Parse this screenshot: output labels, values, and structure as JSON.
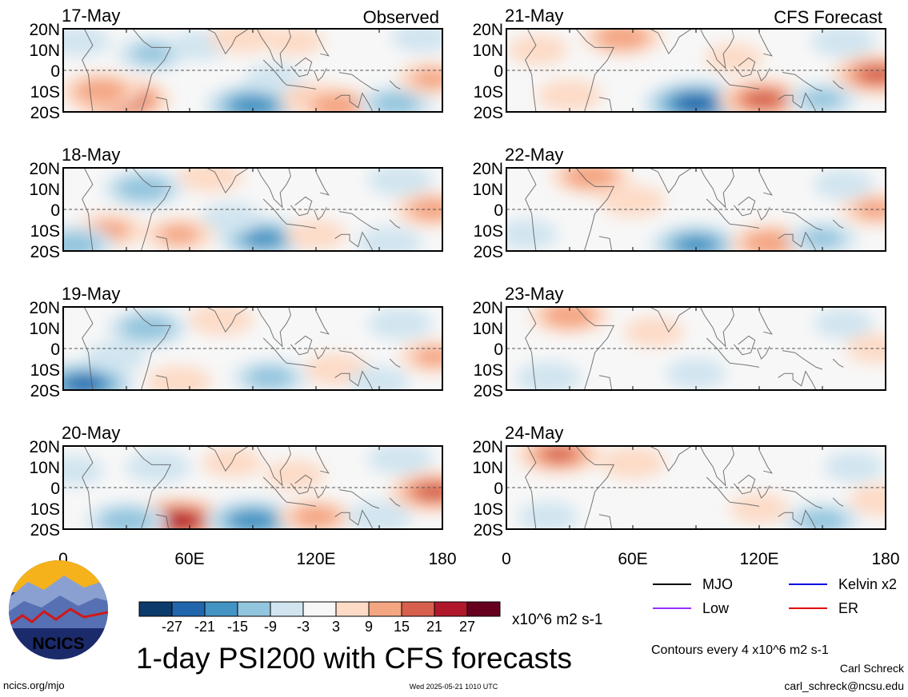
{
  "chart_data": {
    "type": "heatmap",
    "title": "1-day PSI200 with CFS forecasts",
    "colorbar": {
      "unit_label": "x10^6 m2 s-1",
      "tick_labels": [
        "-27",
        "-21",
        "-15",
        "-9",
        "-3",
        "3",
        "9",
        "15",
        "21",
        "27"
      ],
      "colors": [
        "#0b3a6b",
        "#2166ac",
        "#4393c3",
        "#92c5de",
        "#d1e5f0",
        "#f7f7f7",
        "#fddbc7",
        "#f4a582",
        "#d6604d",
        "#b2182b",
        "#67001f"
      ]
    },
    "x_ticks": [
      "0",
      "60E",
      "120E",
      "180"
    ],
    "y_ticks": [
      "20N",
      "10N",
      "0",
      "10S",
      "20S"
    ],
    "xlim": [
      0,
      180
    ],
    "ylim": [
      -20,
      20
    ],
    "panels_left_label": "Observed",
    "panels_right_label": "CFS Forecast",
    "panels_left": [
      {
        "date": "17-May",
        "blobs": [
          {
            "lon": 27,
            "lat": -14,
            "v": 22
          },
          {
            "lon": 18,
            "lat": -10,
            "v": 14
          },
          {
            "lon": 42,
            "lat": 8,
            "v": -10
          },
          {
            "lon": 65,
            "lat": 12,
            "v": -5
          },
          {
            "lon": 90,
            "lat": -17,
            "v": -20
          },
          {
            "lon": 100,
            "lat": -4,
            "v": -5
          },
          {
            "lon": 170,
            "lat": 16,
            "v": -6
          },
          {
            "lon": 120,
            "lat": -14,
            "v": 10
          },
          {
            "lon": 130,
            "lat": -17,
            "v": 14
          },
          {
            "lon": 158,
            "lat": -16,
            "v": -12
          },
          {
            "lon": 175,
            "lat": -4,
            "v": 10
          },
          {
            "lon": 85,
            "lat": 16,
            "v": 8
          },
          {
            "lon": 110,
            "lat": 14,
            "v": 5
          },
          {
            "lon": 8,
            "lat": 14,
            "v": -6
          }
        ]
      },
      {
        "date": "18-May",
        "blobs": [
          {
            "lon": 38,
            "lat": 10,
            "v": -14
          },
          {
            "lon": 22,
            "lat": -10,
            "v": 10
          },
          {
            "lon": 5,
            "lat": -17,
            "v": -14
          },
          {
            "lon": 70,
            "lat": 16,
            "v": 8
          },
          {
            "lon": 95,
            "lat": -14,
            "v": -18
          },
          {
            "lon": 80,
            "lat": -4,
            "v": -6
          },
          {
            "lon": 160,
            "lat": 14,
            "v": -8
          },
          {
            "lon": 175,
            "lat": 0,
            "v": 12
          },
          {
            "lon": 120,
            "lat": -12,
            "v": 6
          },
          {
            "lon": 155,
            "lat": -16,
            "v": -8
          },
          {
            "lon": 55,
            "lat": -12,
            "v": 10
          }
        ]
      },
      {
        "date": "19-May",
        "blobs": [
          {
            "lon": 40,
            "lat": 10,
            "v": -14
          },
          {
            "lon": 10,
            "lat": -17,
            "v": -22
          },
          {
            "lon": 25,
            "lat": -4,
            "v": -6
          },
          {
            "lon": 75,
            "lat": 14,
            "v": 8
          },
          {
            "lon": 98,
            "lat": -14,
            "v": -12
          },
          {
            "lon": 130,
            "lat": -10,
            "v": 8
          },
          {
            "lon": 160,
            "lat": 12,
            "v": -8
          },
          {
            "lon": 176,
            "lat": -4,
            "v": 10
          },
          {
            "lon": 55,
            "lat": -16,
            "v": 8
          },
          {
            "lon": 150,
            "lat": -16,
            "v": -6
          }
        ]
      },
      {
        "date": "20-May",
        "blobs": [
          {
            "lon": 55,
            "lat": -16,
            "v": 24
          },
          {
            "lon": 30,
            "lat": -16,
            "v": -14
          },
          {
            "lon": 45,
            "lat": 10,
            "v": -8
          },
          {
            "lon": 90,
            "lat": -16,
            "v": -20
          },
          {
            "lon": 120,
            "lat": -14,
            "v": 12
          },
          {
            "lon": 150,
            "lat": -14,
            "v": -8
          },
          {
            "lon": 176,
            "lat": -2,
            "v": 18
          },
          {
            "lon": 160,
            "lat": 14,
            "v": -8
          },
          {
            "lon": 80,
            "lat": 12,
            "v": 6
          },
          {
            "lon": 110,
            "lat": 6,
            "v": 6
          },
          {
            "lon": 5,
            "lat": 8,
            "v": -6
          }
        ]
      }
    ],
    "panels_right": [
      {
        "date": "21-May",
        "blobs": [
          {
            "lon": 55,
            "lat": 16,
            "v": 14
          },
          {
            "lon": 90,
            "lat": -16,
            "v": -24
          },
          {
            "lon": 122,
            "lat": -14,
            "v": 18
          },
          {
            "lon": 176,
            "lat": -2,
            "v": 18
          },
          {
            "lon": 30,
            "lat": -12,
            "v": 8
          },
          {
            "lon": 150,
            "lat": -14,
            "v": -10
          },
          {
            "lon": 160,
            "lat": 14,
            "v": -8
          },
          {
            "lon": 15,
            "lat": 10,
            "v": 6
          },
          {
            "lon": 108,
            "lat": 6,
            "v": 5
          }
        ]
      },
      {
        "date": "22-May",
        "blobs": [
          {
            "lon": 40,
            "lat": 16,
            "v": 14
          },
          {
            "lon": 90,
            "lat": -17,
            "v": -18
          },
          {
            "lon": 125,
            "lat": -16,
            "v": 14
          },
          {
            "lon": 175,
            "lat": 0,
            "v": 10
          },
          {
            "lon": 60,
            "lat": 4,
            "v": 8
          },
          {
            "lon": 150,
            "lat": -14,
            "v": -10
          },
          {
            "lon": 160,
            "lat": 12,
            "v": -6
          },
          {
            "lon": 10,
            "lat": -12,
            "v": -6
          }
        ]
      },
      {
        "date": "23-May",
        "blobs": [
          {
            "lon": 30,
            "lat": 16,
            "v": 14
          },
          {
            "lon": 90,
            "lat": -12,
            "v": -6
          },
          {
            "lon": 20,
            "lat": -14,
            "v": -8
          },
          {
            "lon": 160,
            "lat": 12,
            "v": -6
          },
          {
            "lon": 175,
            "lat": 0,
            "v": 5
          },
          {
            "lon": 70,
            "lat": 8,
            "v": 6
          }
        ]
      },
      {
        "date": "24-May",
        "blobs": [
          {
            "lon": 25,
            "lat": 16,
            "v": 16
          },
          {
            "lon": 60,
            "lat": 12,
            "v": 8
          },
          {
            "lon": 150,
            "lat": -16,
            "v": -12
          },
          {
            "lon": 165,
            "lat": 10,
            "v": -6
          },
          {
            "lon": 120,
            "lat": -10,
            "v": 6
          },
          {
            "lon": 178,
            "lat": -6,
            "v": 8
          },
          {
            "lon": 20,
            "lat": -14,
            "v": -6
          }
        ]
      }
    ],
    "legend": [
      {
        "label": "MJO",
        "color": "#000000"
      },
      {
        "label": "Kelvin x2",
        "color": "#0000e0"
      },
      {
        "label": "Low",
        "color": "#9b30ff"
      },
      {
        "label": "ER",
        "color": "#e00000"
      }
    ]
  },
  "footer": {
    "contours_note": "Contours every 4 x10^6 m2 s-1",
    "author": "Carl Schreck",
    "email": "carl_schreck@ncsu.edu",
    "site": "ncics.org/mjo",
    "timestamp": "Wed 2025-05-21 1010 UTC",
    "logo_text": "NCICS"
  }
}
